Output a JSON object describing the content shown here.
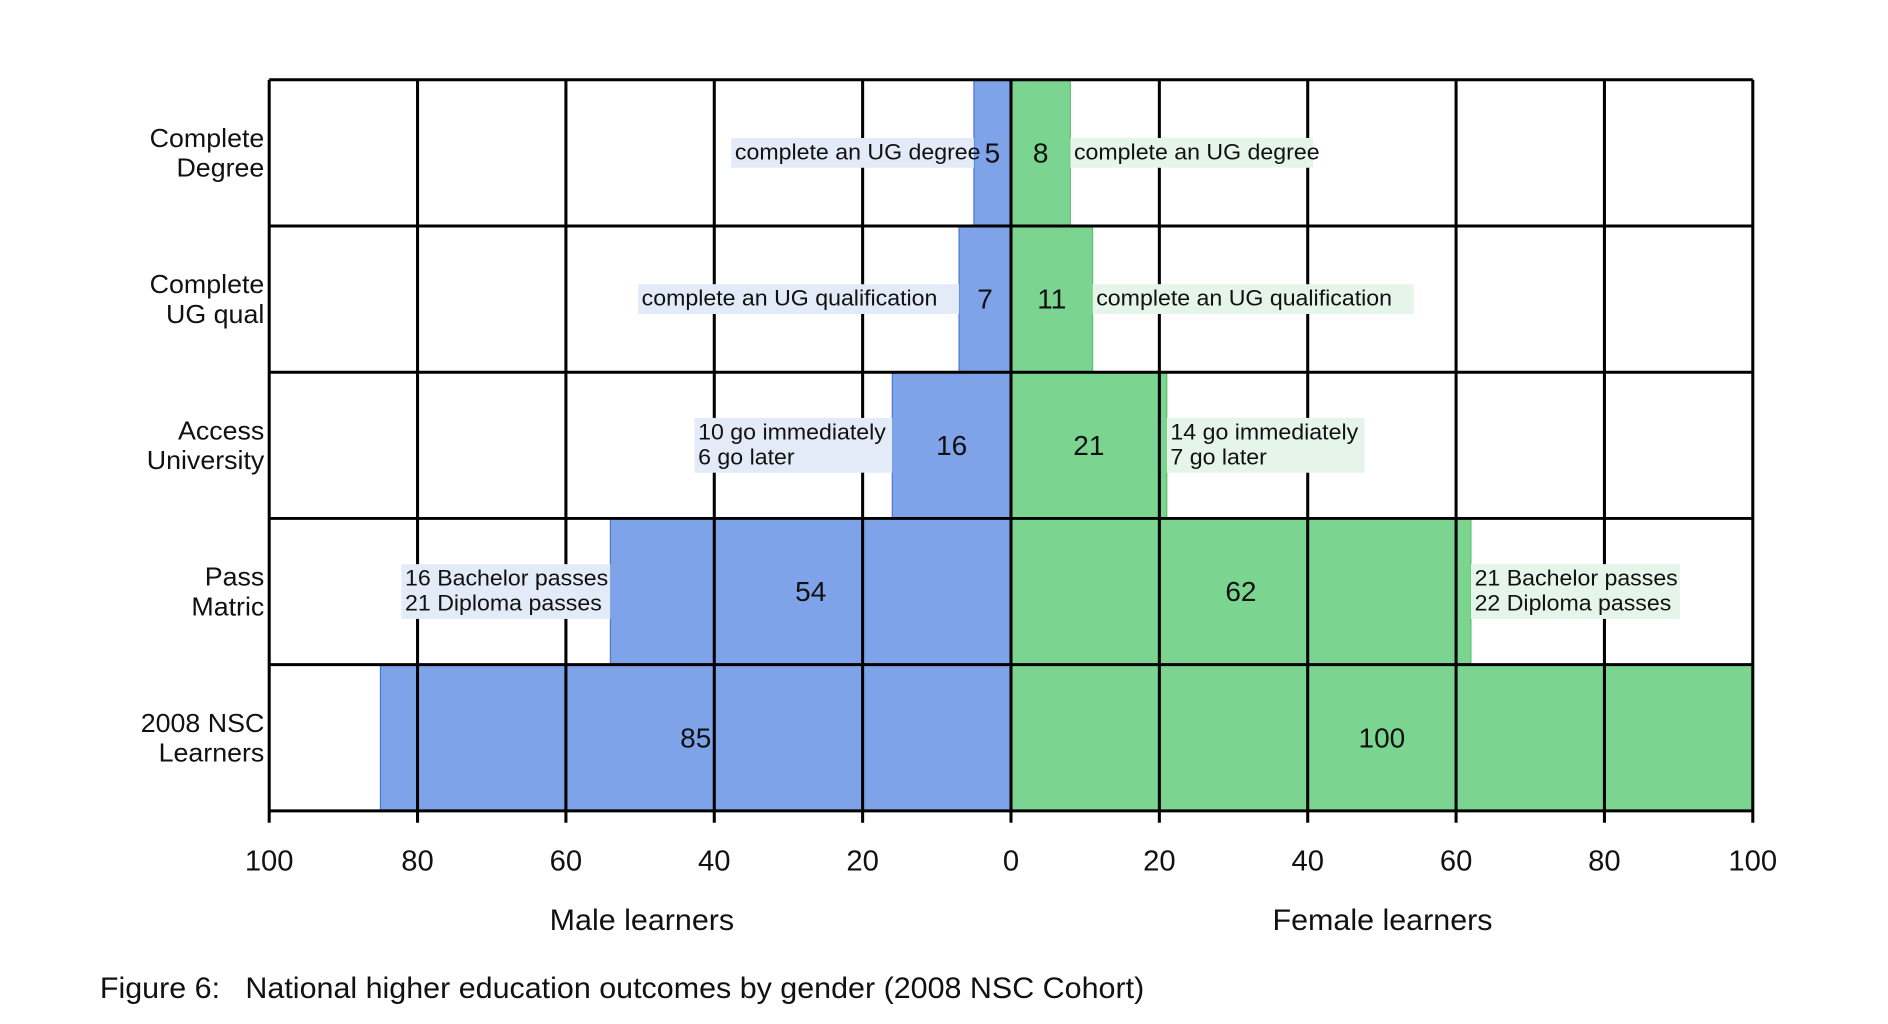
{
  "chart_data": {
    "type": "bar",
    "orientation": "horizontal-population-pyramid",
    "title": "Figure 6:   National higher education outcomes by gender (2008 NSC Cohort)",
    "categories": [
      "Complete Degree",
      "Complete UG qual",
      "Access University",
      "Pass Matric",
      "2008 NSC Learners"
    ],
    "category_lines": [
      [
        "Complete",
        "Degree"
      ],
      [
        "Complete",
        "UG qual"
      ],
      [
        "Access",
        "University"
      ],
      [
        "Pass",
        "Matric"
      ],
      [
        "2008 NSC",
        "Learners"
      ]
    ],
    "series": [
      {
        "name": "Male learners",
        "side": "left",
        "color": "#7fa3e8",
        "label_bg": "#e3eaf8",
        "values": [
          5,
          7,
          16,
          54,
          85
        ],
        "annotations": [
          [
            "complete an UG degree"
          ],
          [
            "complete an UG qualification"
          ],
          [
            "10 go immediately",
            "6 go later"
          ],
          [
            "16 Bachelor passes",
            "21 Diploma passes"
          ],
          []
        ]
      },
      {
        "name": "Female learners",
        "side": "right",
        "color": "#7bd591",
        "label_bg": "#e6f5e9",
        "values": [
          8,
          11,
          21,
          62,
          100
        ],
        "annotations": [
          [
            "complete an UG degree"
          ],
          [
            "complete an UG qualification"
          ],
          [
            "14 go immediately",
            "7 go later"
          ],
          [
            "21 Bachelor passes",
            "22 Diploma passes"
          ],
          []
        ]
      }
    ],
    "xlim": [
      0,
      100
    ],
    "xticks": [
      100,
      80,
      60,
      40,
      20,
      0,
      20,
      40,
      60,
      80,
      100
    ],
    "xlabel_left": "Male learners",
    "xlabel_right": "Female learners",
    "grid": true
  }
}
